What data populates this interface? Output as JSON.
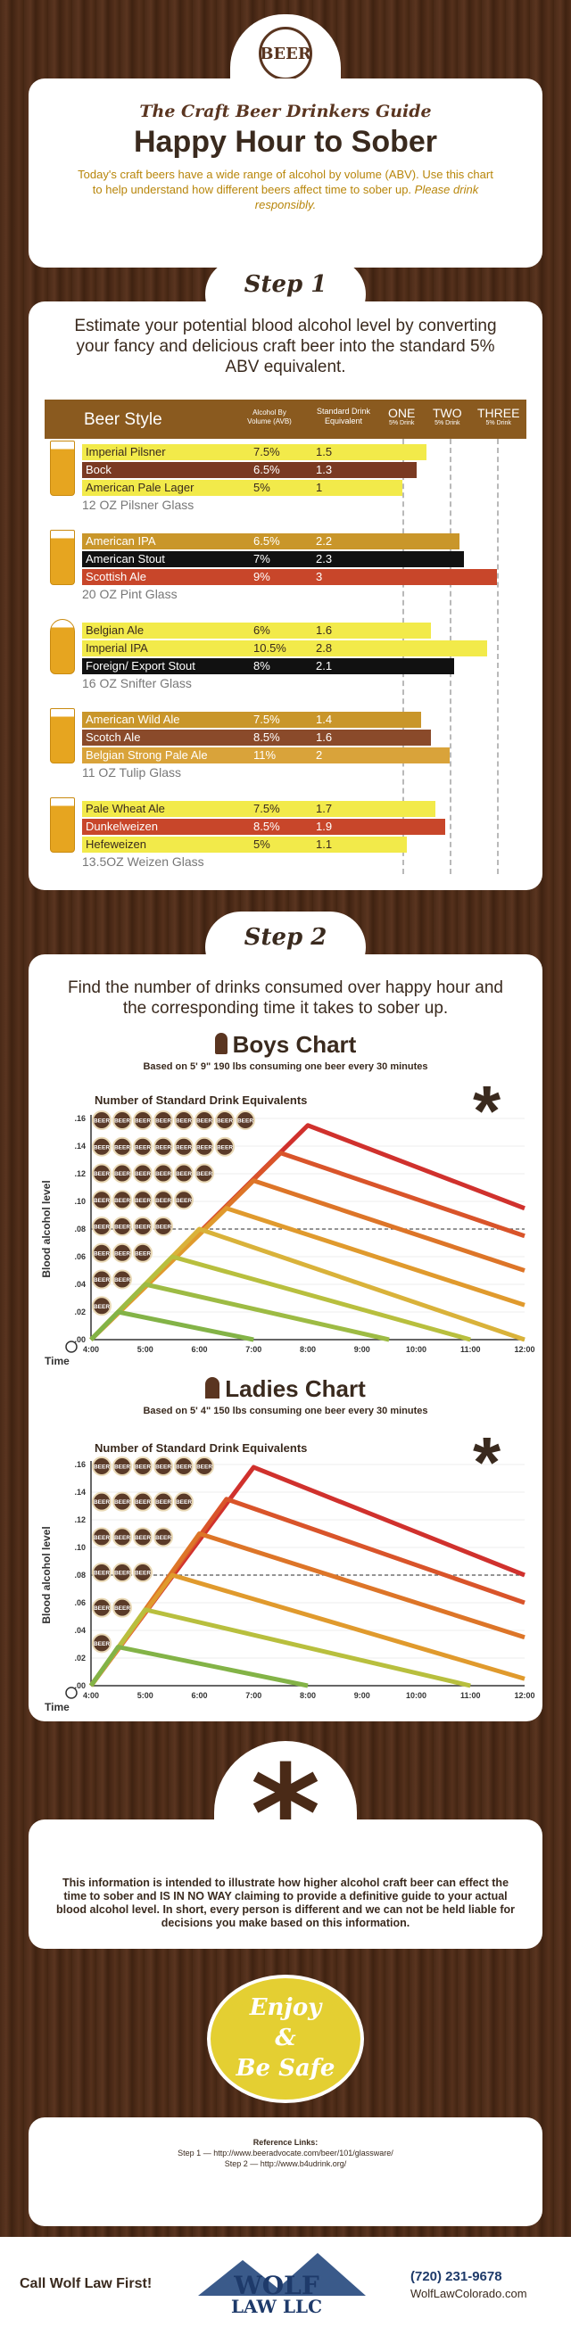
{
  "header": {
    "logo_text": "BEER",
    "subtitle": "The Craft Beer Drinkers Guide",
    "title": "Happy Hour to Sober",
    "intro": "Today's craft beers have a wide range of alcohol by volume (ABV). Use this chart to help understand how different beers affect time to sober up. ",
    "intro_em": "Please drink responsibly."
  },
  "step1": {
    "badge": "Step 1",
    "lead": "Estimate your potential blood alcohol level by converting your fancy and delicious craft beer into the standard 5% ABV equivalent.",
    "headers": {
      "style": "Beer Style",
      "abv": "Alcohol By Volume (AVB)",
      "std": "Standard Drink Equivalent",
      "one": "ONE",
      "one_sub": "5% Drink",
      "two": "TWO",
      "two_sub": "5% Drink",
      "three": "THREE",
      "three_sub": "5% Drink"
    },
    "groups": [
      {
        "glass": "12 OZ Pilsner Glass",
        "rows": [
          {
            "name": "Imperial Pilsner",
            "abv": "7.5%",
            "std": "1.5",
            "value": 1.5,
            "color": "#f2ea4a",
            "dark": false
          },
          {
            "name": "Bock",
            "abv": "6.5%",
            "std": "1.3",
            "value": 1.3,
            "color": "#7a3a22",
            "dark": true
          },
          {
            "name": "American Pale Lager",
            "abv": "5%",
            "std": "1",
            "value": 1,
            "color": "#f2ea4a",
            "dark": false
          }
        ]
      },
      {
        "glass": "20 OZ Pint Glass",
        "rows": [
          {
            "name": "American IPA",
            "abv": "6.5%",
            "std": "2.2",
            "value": 2.2,
            "color": "#c9962a",
            "dark": true
          },
          {
            "name": "American Stout",
            "abv": "7%",
            "std": "2.3",
            "value": 2.3,
            "color": "#111111",
            "dark": true
          },
          {
            "name": "Scottish Ale",
            "abv": "9%",
            "std": "3",
            "value": 3,
            "color": "#c8462a",
            "dark": true
          }
        ]
      },
      {
        "glass": "16 OZ Snifter Glass",
        "rows": [
          {
            "name": "Belgian Ale",
            "abv": "6%",
            "std": "1.6",
            "value": 1.6,
            "color": "#f2ea4a",
            "dark": false
          },
          {
            "name": "Imperial IPA",
            "abv": "10.5%",
            "std": "2.8",
            "value": 2.8,
            "color": "#f2ea4a",
            "dark": false
          },
          {
            "name": "Foreign/ Export Stout",
            "abv": "8%",
            "std": "2.1",
            "value": 2.1,
            "color": "#111111",
            "dark": true
          }
        ]
      },
      {
        "glass": "11 OZ Tulip Glass",
        "rows": [
          {
            "name": "American Wild Ale",
            "abv": "7.5%",
            "std": "1.4",
            "value": 1.4,
            "color": "#c9962a",
            "dark": true
          },
          {
            "name": "Scotch Ale",
            "abv": "8.5%",
            "std": "1.6",
            "value": 1.6,
            "color": "#8a4a2a",
            "dark": true
          },
          {
            "name": "Belgian Strong Pale Ale",
            "abv": "11%",
            "std": "2",
            "value": 2,
            "color": "#d9a33a",
            "dark": true
          }
        ]
      },
      {
        "glass": "13.5OZ Weizen Glass",
        "rows": [
          {
            "name": "Pale Wheat Ale",
            "abv": "7.5%",
            "std": "1.7",
            "value": 1.7,
            "color": "#f2ea4a",
            "dark": false
          },
          {
            "name": "Dunkelweizen",
            "abv": "8.5%",
            "std": "1.9",
            "value": 1.9,
            "color": "#c8462a",
            "dark": true
          },
          {
            "name": "Hefeweizen",
            "abv": "5%",
            "std": "1.1",
            "value": 1.1,
            "color": "#f2ea4a",
            "dark": false
          }
        ]
      }
    ]
  },
  "step2": {
    "badge": "Step 2",
    "lead": "Find the number of drinks consumed over happy hour and the corresponding time it takes to sober up."
  },
  "chart_data": [
    {
      "type": "line",
      "title": "Boys Chart",
      "subtitle": "Based on 5' 9\" 190 lbs consuming one beer every 30 minutes",
      "header": "Number of Standard Drink Equivalents",
      "ylabel": "Blood alcohol level",
      "xlabel": "Time",
      "x": [
        "4:00",
        "5:00",
        "6:00",
        "7:00",
        "8:00",
        "9:00",
        "10:00",
        "11:00",
        "12:00"
      ],
      "yticks": [
        ".16",
        ".14",
        ".12",
        ".10",
        ".08",
        ".06",
        ".04",
        ".02",
        ".00"
      ],
      "ylim": [
        0,
        0.16
      ],
      "xlim": [
        4,
        12
      ],
      "limit_line": 0.08,
      "coin_label": "BEER",
      "coin_counts": [
        8,
        7,
        6,
        5,
        4,
        3,
        2,
        1
      ],
      "series": [
        {
          "drinks": 8,
          "peak": [
            8.0,
            0.155
          ],
          "end": [
            12.0,
            0.095
          ],
          "color": "#d0312d"
        },
        {
          "drinks": 7,
          "peak": [
            7.5,
            0.135
          ],
          "end": [
            12.0,
            0.075
          ],
          "color": "#d9542a"
        },
        {
          "drinks": 6,
          "peak": [
            7.0,
            0.115
          ],
          "end": [
            12.0,
            0.05
          ],
          "color": "#dd7528"
        },
        {
          "drinks": 5,
          "peak": [
            6.5,
            0.095
          ],
          "end": [
            12.0,
            0.025
          ],
          "color": "#e09a2d"
        },
        {
          "drinks": 4,
          "peak": [
            6.0,
            0.08
          ],
          "end": [
            12.0,
            0.0
          ],
          "color": "#d9b23a"
        },
        {
          "drinks": 3,
          "peak": [
            5.5,
            0.06
          ],
          "end": [
            11.0,
            0.0
          ],
          "color": "#b8bf3e"
        },
        {
          "drinks": 2,
          "peak": [
            5.0,
            0.04
          ],
          "end": [
            9.5,
            0.0
          ],
          "color": "#9dbb44"
        },
        {
          "drinks": 1,
          "peak": [
            4.5,
            0.02
          ],
          "end": [
            7.0,
            0.0
          ],
          "color": "#83b347"
        }
      ]
    },
    {
      "type": "line",
      "title": "Ladies Chart",
      "subtitle": "Based on 5' 4\" 150 lbs consuming one beer every 30 minutes",
      "header": "Number of Standard Drink Equivalents",
      "ylabel": "Blood alcohol level",
      "xlabel": "Time",
      "x": [
        "4:00",
        "5:00",
        "6:00",
        "7:00",
        "8:00",
        "9:00",
        "10:00",
        "11:00",
        "12:00"
      ],
      "yticks": [
        ".16",
        ".14",
        ".12",
        ".10",
        ".08",
        ".06",
        ".04",
        ".02",
        ".00"
      ],
      "ylim": [
        0,
        0.16
      ],
      "xlim": [
        4,
        12
      ],
      "limit_line": 0.08,
      "coin_label": "BEER",
      "coin_counts": [
        6,
        5,
        4,
        3,
        2,
        1
      ],
      "series": [
        {
          "drinks": 6,
          "peak": [
            7.0,
            0.158
          ],
          "end": [
            12.0,
            0.08
          ],
          "color": "#d0312d"
        },
        {
          "drinks": 5,
          "peak": [
            6.5,
            0.135
          ],
          "end": [
            12.0,
            0.06
          ],
          "color": "#d9542a"
        },
        {
          "drinks": 4,
          "peak": [
            6.0,
            0.11
          ],
          "end": [
            12.0,
            0.035
          ],
          "color": "#dd7528"
        },
        {
          "drinks": 3,
          "peak": [
            5.5,
            0.08
          ],
          "end": [
            12.0,
            0.005
          ],
          "color": "#e09a2d"
        },
        {
          "drinks": 2,
          "peak": [
            5.0,
            0.055
          ],
          "end": [
            11.0,
            0.0
          ],
          "color": "#b8bf3e"
        },
        {
          "drinks": 1,
          "peak": [
            4.5,
            0.028
          ],
          "end": [
            8.0,
            0.0
          ],
          "color": "#83b347"
        }
      ]
    }
  ],
  "disclaimer": "This information is intended to illustrate how higher alcohol craft beer can effect the time to sober and IS IN NO WAY claiming to provide a definitive guide to your actual blood alcohol level. In short, every person is different and we can not be held liable for decisions you make based on this information.",
  "enjoy": {
    "line1": "Enjoy",
    "line2": "&",
    "line3": "Be Safe"
  },
  "references": {
    "title": "Reference Links:",
    "line1": "Step 1 — http://www.beeradvocate.com/beer/101/glassware/",
    "line2": "Step 2 — http://www.b4udrink.org/"
  },
  "footer": {
    "call": "Call Wolf Law First!",
    "logo_top": "WOLF",
    "logo_bottom": "LAW LLC",
    "phone": "(720) 231-9678",
    "site": "WolfLawColorado.com"
  },
  "colors": {
    "gold": "#c9a227",
    "brown": "#5a3520",
    "red": "#d0312d"
  }
}
